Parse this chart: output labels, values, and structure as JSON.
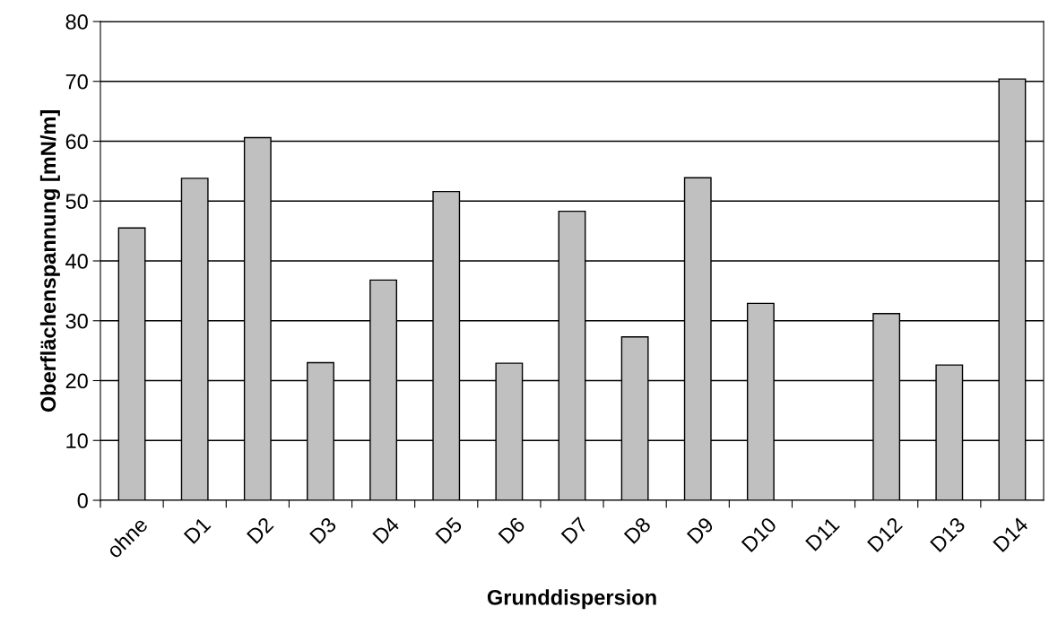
{
  "chart_data": {
    "type": "bar",
    "xlabel": "Grunddispersion",
    "ylabel": "Oberflächenspannung [mN/m]",
    "categories": [
      "ohne",
      "D1",
      "D2",
      "D3",
      "D4",
      "D5",
      "D6",
      "D7",
      "D8",
      "D9",
      "D10",
      "D11",
      "D12",
      "D13",
      "D14"
    ],
    "values": [
      45.5,
      53.8,
      60.6,
      23.0,
      36.8,
      51.6,
      22.9,
      48.3,
      27.3,
      53.9,
      32.9,
      null,
      31.2,
      22.6,
      70.4
    ],
    "color": "#c0c0c0",
    "ylim": [
      0,
      80
    ],
    "yticks": [
      0,
      10,
      20,
      30,
      40,
      50,
      60,
      70,
      80
    ],
    "grid": "y"
  }
}
